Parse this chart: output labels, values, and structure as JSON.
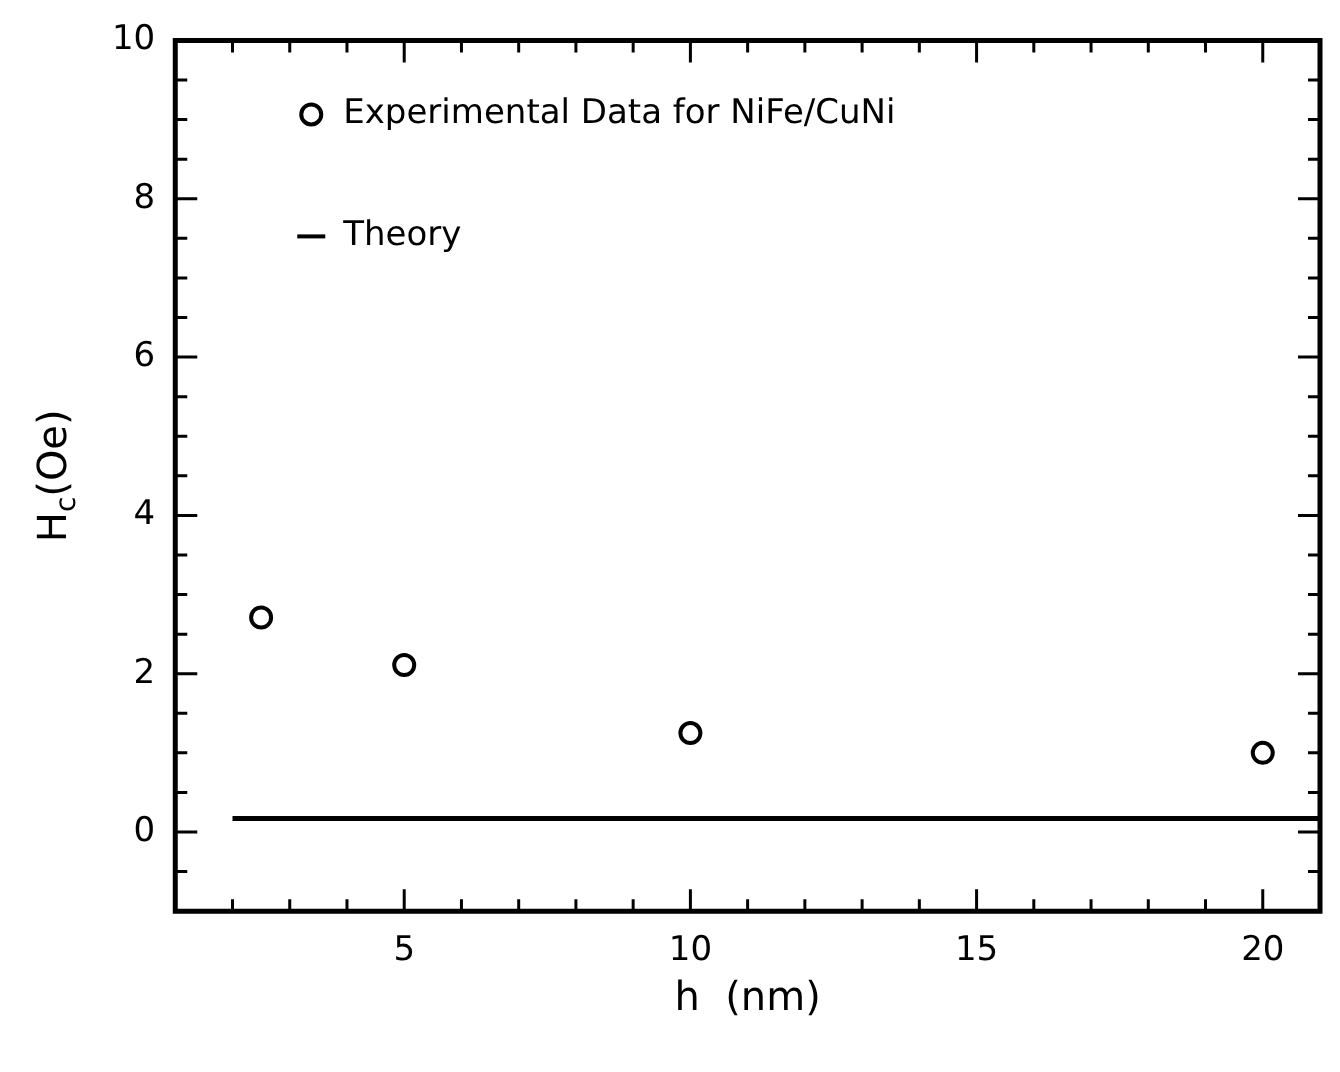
{
  "chart_data": {
    "type": "scatter",
    "xlabel": "h  (nm)",
    "ylabel": "H$_{c}$(Oe)",
    "legend": "top left",
    "grid": false,
    "xlim": [
      1,
      21
    ],
    "xticks": [
      {
        "value": 1,
        "label": null
      },
      {
        "value": 2,
        "label": null
      },
      {
        "value": 3,
        "label": null
      },
      {
        "value": 4,
        "label": null
      },
      5,
      {
        "value": 6,
        "label": null
      },
      {
        "value": 7,
        "label": null
      },
      {
        "value": 8,
        "label": null
      },
      {
        "value": 9,
        "label": null
      },
      10,
      {
        "value": 11,
        "label": null
      },
      {
        "value": 12,
        "label": null
      },
      {
        "value": 13,
        "label": null
      },
      {
        "value": 14,
        "label": null
      },
      15,
      {
        "value": 16,
        "label": null
      },
      {
        "value": 17,
        "label": null
      },
      {
        "value": 18,
        "label": null
      },
      {
        "value": 19,
        "label": null
      },
      20,
      {
        "value": 21,
        "label": null
      }
    ],
    "ylim": [
      -1,
      10
    ],
    "yticks": [
      {
        "value": -1,
        "label": null
      },
      {
        "value": -0.5,
        "label": null
      },
      0,
      {
        "value": 0.5,
        "label": null
      },
      {
        "value": 1,
        "label": null
      },
      {
        "value": 1.5,
        "label": null
      },
      2,
      {
        "value": 2.5,
        "label": null
      },
      {
        "value": 3,
        "label": null
      },
      {
        "value": 3.5,
        "label": null
      },
      4,
      {
        "value": 4.5,
        "label": null
      },
      {
        "value": 5,
        "label": null
      },
      {
        "value": 5.5,
        "label": null
      },
      6,
      {
        "value": 6.5,
        "label": null
      },
      {
        "value": 7,
        "label": null
      },
      {
        "value": 7.5,
        "label": null
      },
      8,
      {
        "value": 8.5,
        "label": null
      },
      {
        "value": 9,
        "label": null
      },
      {
        "value": 9.5,
        "label": null
      },
      10
    ],
    "series": [
      {
        "name": "Experimental Data for NiFe/CuNi",
        "type": "scatter",
        "marker": "circle",
        "color": "#000000",
        "x": [
          2.5,
          5,
          10,
          20
        ],
        "values": [
          2.71,
          2.11,
          1.25,
          1.0
        ]
      },
      {
        "name": "Theory",
        "type": "line",
        "marker": "none",
        "line_style": "solid",
        "color": "#000000",
        "x": [
          2,
          21
        ],
        "values": [
          0.17,
          0.17
        ]
      }
    ]
  }
}
